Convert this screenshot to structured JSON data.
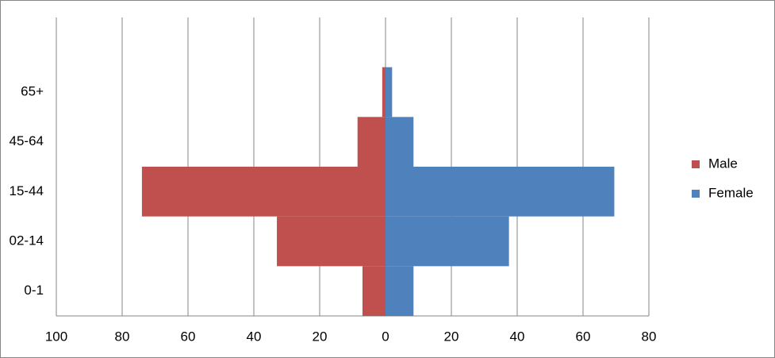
{
  "chart_data": {
    "type": "bar",
    "orientation": "horizontal",
    "stacked": true,
    "categories": [
      "0-1",
      "02-14",
      "15-44",
      "45-64",
      "65+",
      null
    ],
    "series": [
      {
        "name": "Male",
        "color": "#c0504d",
        "values": [
          -7,
          -33,
          -74,
          -8.5,
          -1,
          null
        ]
      },
      {
        "name": "Female",
        "color": "#4f81bd",
        "values": [
          8.5,
          37.5,
          69.5,
          8.5,
          2,
          null
        ]
      }
    ],
    "xlim": [
      -100,
      80
    ],
    "xticks": [
      {
        "value": -100,
        "label": "100"
      },
      {
        "value": -80,
        "label": "80"
      },
      {
        "value": -60,
        "label": "60"
      },
      {
        "value": -40,
        "label": "40"
      },
      {
        "value": -20,
        "label": "20"
      },
      0,
      20,
      40,
      60,
      80
    ],
    "grid": true,
    "legend": "right"
  }
}
